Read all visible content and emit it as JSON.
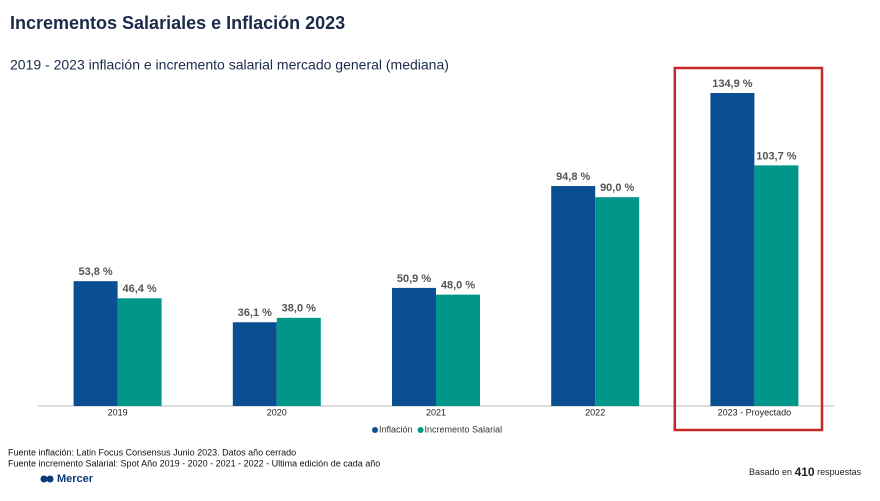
{
  "chart_data": {
    "type": "bar",
    "title": "Incrementos Salariales e Inflación 2023",
    "subtitle": "2019 - 2023 inflación e incremento salarial mercado general (mediana)",
    "categories": [
      "2019",
      "2020",
      "2021",
      "2022",
      "2023 - Proyectado"
    ],
    "series": [
      {
        "name": "Inflación",
        "color": "#0a4f92",
        "values": [
          53.8,
          36.1,
          50.9,
          94.8,
          134.9
        ],
        "value_labels": [
          "53,8 %",
          "36,1 %",
          "50,9 %",
          "94,8 %",
          "134,9 %"
        ]
      },
      {
        "name": "Incremento Salarial",
        "color": "#00968a",
        "values": [
          46.4,
          38.0,
          48.0,
          90.0,
          103.7
        ],
        "value_labels": [
          "46,4 %",
          "38,0 %",
          "48,0 %",
          "90,0 %",
          "103,7 %"
        ]
      }
    ],
    "notes": [
      "Fuente inflación: Latin Focus Consensus Junio 2023. Datos año cerrado",
      "Fuente incremento Salarial: Spot Año 2019 - 2020 - 2021 - 2022 - Ultima edición de cada año"
    ],
    "footer": {
      "prefix": "Basado en",
      "count": 410,
      "suffix": "respuestas"
    },
    "brand": "Mercer"
  }
}
